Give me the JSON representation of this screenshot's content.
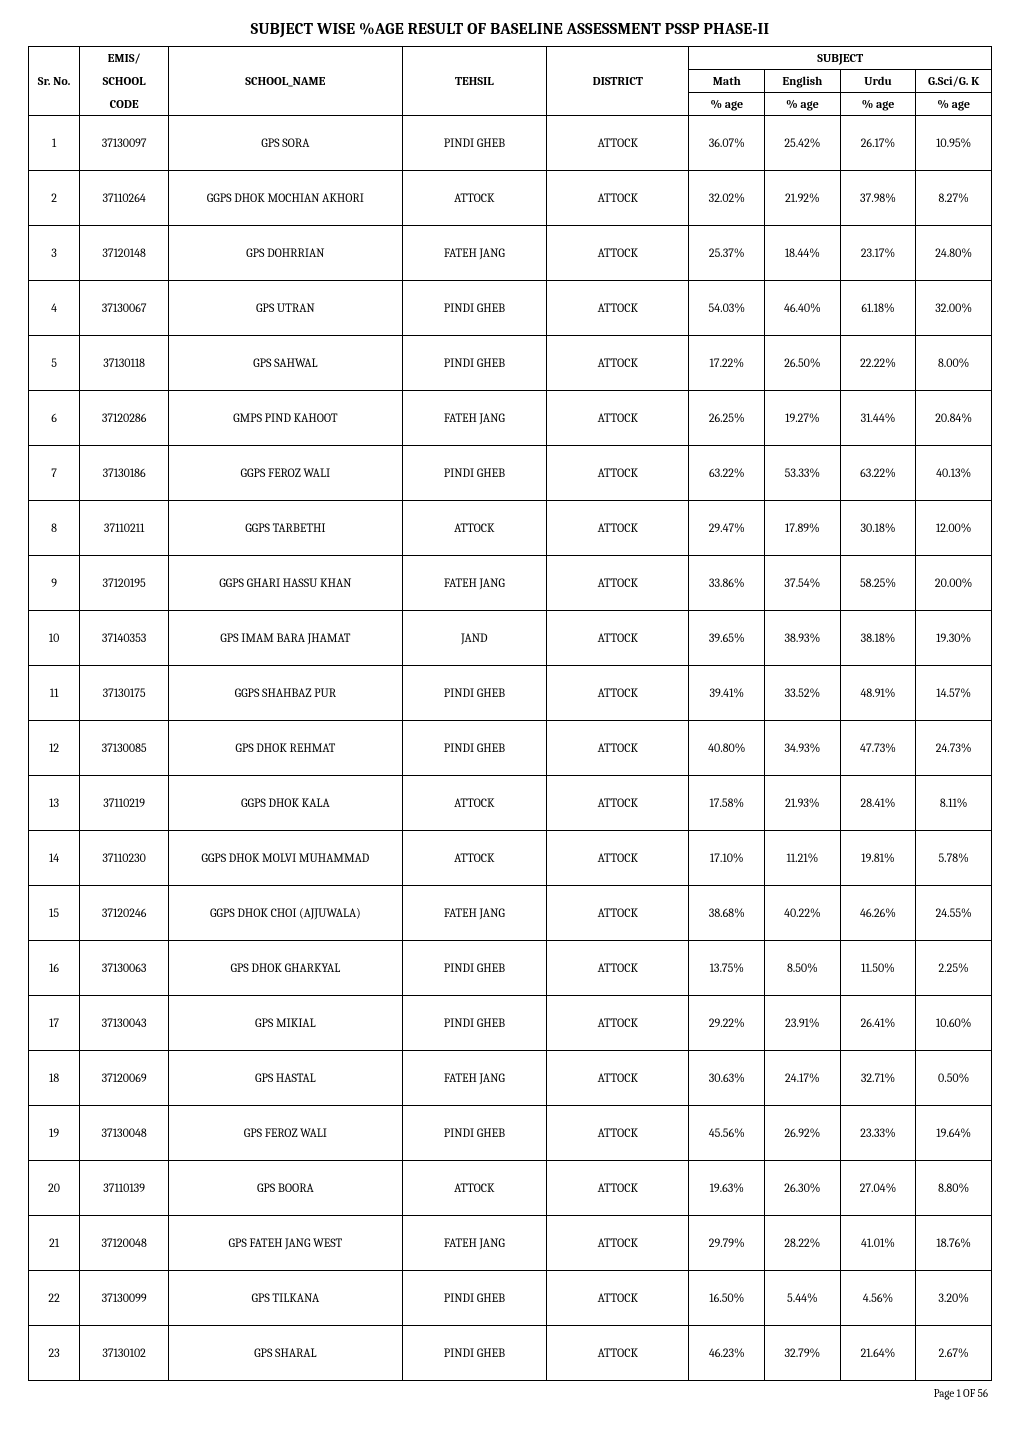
{
  "page": {
    "title": "SUBJECT WISE %AGE RESULT OF BASELINE ASSESSMENT PSSP PHASE-II",
    "footer": "Page 1 OF 56"
  },
  "table": {
    "headers": {
      "sr": "Sr. No.",
      "emis_top": "EMIS/",
      "emis_mid": "SCHOOL",
      "emis_bot": "CODE",
      "school_name": "SCHOOL_NAME",
      "tehsil": "TEHSIL",
      "district": "DISTRICT",
      "subject": "SUBJECT",
      "math": "Math",
      "english": "English",
      "urdu": "Urdu",
      "gsci": "G.Sci/G. K",
      "pct_age": "% age"
    },
    "rows": [
      {
        "sr": "1",
        "emis": "37130097",
        "name": "GPS SORA",
        "tehsil": "PINDI GHEB",
        "district": "ATTOCK",
        "math": "36.07%",
        "english": "25.42%",
        "urdu": "26.17%",
        "gsci": "10.95%"
      },
      {
        "sr": "2",
        "emis": "37110264",
        "name": "GGPS DHOK MOCHIAN AKHORI",
        "tehsil": "ATTOCK",
        "district": "ATTOCK",
        "math": "32.02%",
        "english": "21.92%",
        "urdu": "37.98%",
        "gsci": "8.27%"
      },
      {
        "sr": "3",
        "emis": "37120148",
        "name": "GPS DOHRRIAN",
        "tehsil": "FATEH JANG",
        "district": "ATTOCK",
        "math": "25.37%",
        "english": "18.44%",
        "urdu": "23.17%",
        "gsci": "24.80%"
      },
      {
        "sr": "4",
        "emis": "37130067",
        "name": "GPS UTRAN",
        "tehsil": "PINDI GHEB",
        "district": "ATTOCK",
        "math": "54.03%",
        "english": "46.40%",
        "urdu": "61.18%",
        "gsci": "32.00%"
      },
      {
        "sr": "5",
        "emis": "37130118",
        "name": "GPS SAHWAL",
        "tehsil": "PINDI GHEB",
        "district": "ATTOCK",
        "math": "17.22%",
        "english": "26.50%",
        "urdu": "22.22%",
        "gsci": "8.00%"
      },
      {
        "sr": "6",
        "emis": "37120286",
        "name": "GMPS PIND KAHOOT",
        "tehsil": "FATEH JANG",
        "district": "ATTOCK",
        "math": "26.25%",
        "english": "19.27%",
        "urdu": "31.44%",
        "gsci": "20.84%"
      },
      {
        "sr": "7",
        "emis": "37130186",
        "name": "GGPS FEROZ WALI",
        "tehsil": "PINDI GHEB",
        "district": "ATTOCK",
        "math": "63.22%",
        "english": "53.33%",
        "urdu": "63.22%",
        "gsci": "40.13%"
      },
      {
        "sr": "8",
        "emis": "37110211",
        "name": "GGPS TARBETHI",
        "tehsil": "ATTOCK",
        "district": "ATTOCK",
        "math": "29.47%",
        "english": "17.89%",
        "urdu": "30.18%",
        "gsci": "12.00%"
      },
      {
        "sr": "9",
        "emis": "37120195",
        "name": "GGPS GHARI HASSU KHAN",
        "tehsil": "FATEH JANG",
        "district": "ATTOCK",
        "math": "33.86%",
        "english": "37.54%",
        "urdu": "58.25%",
        "gsci": "20.00%"
      },
      {
        "sr": "10",
        "emis": "37140353",
        "name": "GPS IMAM BARA JHAMAT",
        "tehsil": "JAND",
        "district": "ATTOCK",
        "math": "39.65%",
        "english": "38.93%",
        "urdu": "38.18%",
        "gsci": "19.30%"
      },
      {
        "sr": "11",
        "emis": "37130175",
        "name": "GGPS SHAHBAZ PUR",
        "tehsil": "PINDI GHEB",
        "district": "ATTOCK",
        "math": "39.41%",
        "english": "33.52%",
        "urdu": "48.91%",
        "gsci": "14.57%"
      },
      {
        "sr": "12",
        "emis": "37130085",
        "name": "GPS DHOK REHMAT",
        "tehsil": "PINDI GHEB",
        "district": "ATTOCK",
        "math": "40.80%",
        "english": "34.93%",
        "urdu": "47.73%",
        "gsci": "24.73%"
      },
      {
        "sr": "13",
        "emis": "37110219",
        "name": "GGPS DHOK KALA",
        "tehsil": "ATTOCK",
        "district": "ATTOCK",
        "math": "17.58%",
        "english": "21.93%",
        "urdu": "28.41%",
        "gsci": "8.11%"
      },
      {
        "sr": "14",
        "emis": "37110230",
        "name": "GGPS DHOK MOLVI MUHAMMAD",
        "tehsil": "ATTOCK",
        "district": "ATTOCK",
        "math": "17.10%",
        "english": "11.21%",
        "urdu": "19.81%",
        "gsci": "5.78%"
      },
      {
        "sr": "15",
        "emis": "37120246",
        "name": "GGPS DHOK CHOI (AJJUWALA)",
        "tehsil": "FATEH JANG",
        "district": "ATTOCK",
        "math": "38.68%",
        "english": "40.22%",
        "urdu": "46.26%",
        "gsci": "24.55%"
      },
      {
        "sr": "16",
        "emis": "37130063",
        "name": "GPS DHOK GHARKYAL",
        "tehsil": "PINDI GHEB",
        "district": "ATTOCK",
        "math": "13.75%",
        "english": "8.50%",
        "urdu": "11.50%",
        "gsci": "2.25%"
      },
      {
        "sr": "17",
        "emis": "37130043",
        "name": "GPS MIKIAL",
        "tehsil": "PINDI GHEB",
        "district": "ATTOCK",
        "math": "29.22%",
        "english": "23.91%",
        "urdu": "26.41%",
        "gsci": "10.60%"
      },
      {
        "sr": "18",
        "emis": "37120069",
        "name": "GPS HASTAL",
        "tehsil": "FATEH JANG",
        "district": "ATTOCK",
        "math": "30.63%",
        "english": "24.17%",
        "urdu": "32.71%",
        "gsci": "0.50%"
      },
      {
        "sr": "19",
        "emis": "37130048",
        "name": "GPS FEROZ WALI",
        "tehsil": "PINDI GHEB",
        "district": "ATTOCK",
        "math": "45.56%",
        "english": "26.92%",
        "urdu": "23.33%",
        "gsci": "19.64%"
      },
      {
        "sr": "20",
        "emis": "37110139",
        "name": "GPS BOORA",
        "tehsil": "ATTOCK",
        "district": "ATTOCK",
        "math": "19.63%",
        "english": "26.30%",
        "urdu": "27.04%",
        "gsci": "8.80%"
      },
      {
        "sr": "21",
        "emis": "37120048",
        "name": "GPS FATEH JANG WEST",
        "tehsil": "FATEH JANG",
        "district": "ATTOCK",
        "math": "29.79%",
        "english": "28.22%",
        "urdu": "41.01%",
        "gsci": "18.76%"
      },
      {
        "sr": "22",
        "emis": "37130099",
        "name": "GPS TILKANA",
        "tehsil": "PINDI GHEB",
        "district": "ATTOCK",
        "math": "16.50%",
        "english": "5.44%",
        "urdu": "4.56%",
        "gsci": "3.20%"
      },
      {
        "sr": "23",
        "emis": "37130102",
        "name": "GPS SHARAL",
        "tehsil": "PINDI GHEB",
        "district": "ATTOCK",
        "math": "46.23%",
        "english": "32.79%",
        "urdu": "21.64%",
        "gsci": "2.67%"
      }
    ]
  }
}
